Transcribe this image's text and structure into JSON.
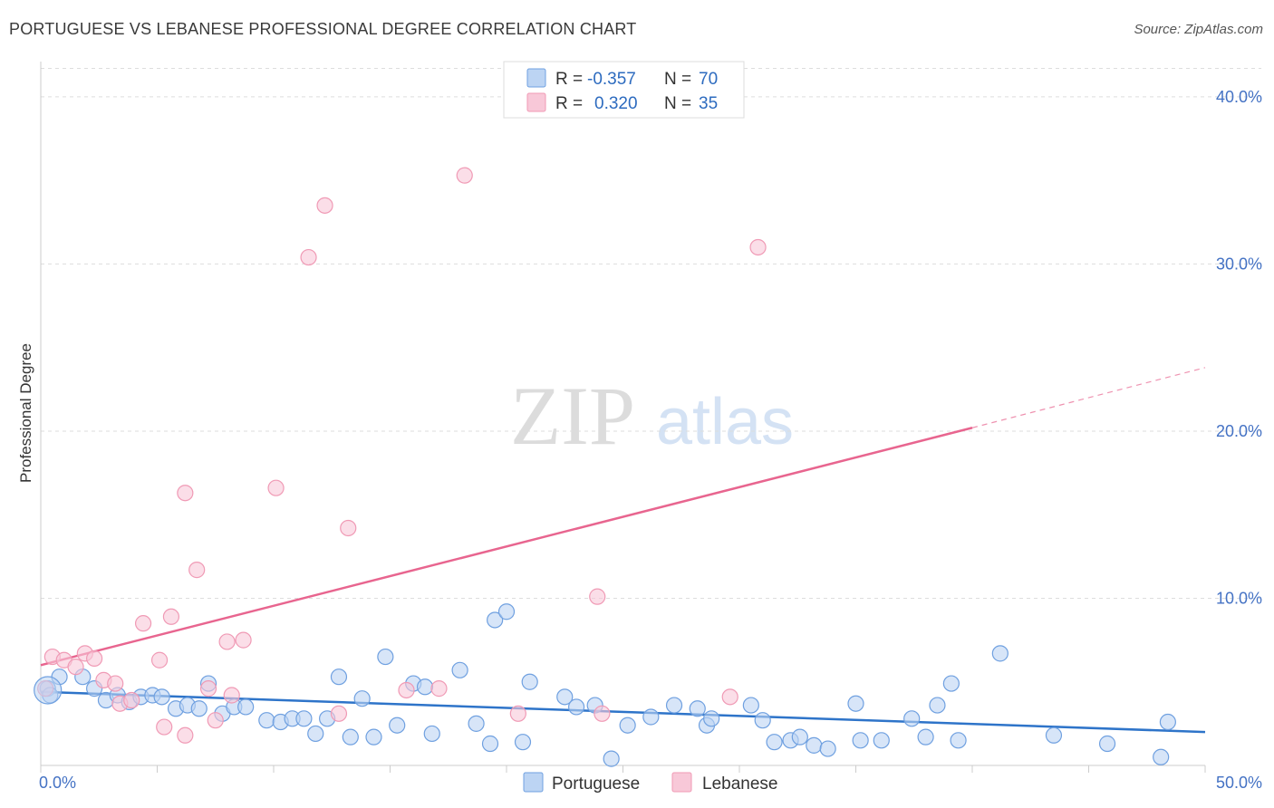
{
  "header": {
    "title": "PORTUGUESE VS LEBANESE PROFESSIONAL DEGREE CORRELATION CHART",
    "source": "Source: ZipAtlas.com"
  },
  "watermark": {
    "zip": "ZIP",
    "atlas": "atlas"
  },
  "chart_data": {
    "type": "scatter",
    "title": "PORTUGUESE VS LEBANESE PROFESSIONAL DEGREE CORRELATION CHART",
    "xlabel": "",
    "ylabel": "Professional Degree",
    "xlim": [
      0,
      50
    ],
    "ylim": [
      0,
      42
    ],
    "x_tick_labels": [
      {
        "value": 0,
        "label": "0.0%"
      },
      {
        "value": 50,
        "label": "50.0%"
      }
    ],
    "y_tick_labels": [
      {
        "value": 10,
        "label": "10.0%"
      },
      {
        "value": 20,
        "label": "20.0%"
      },
      {
        "value": 30,
        "label": "30.0%"
      },
      {
        "value": 40,
        "label": "40.0%"
      }
    ],
    "legend": {
      "placement": "top-center",
      "rows": [
        {
          "r_label": "R =",
          "r_value": "-0.357",
          "n_label": "N =",
          "n_value": "70"
        },
        {
          "r_label": "R =",
          "r_value": "0.320",
          "n_label": "N =",
          "n_value": "35"
        }
      ]
    },
    "series": [
      {
        "name": "Portuguese",
        "color": "#6fa0e0",
        "fill": "#bcd4f3",
        "trend": {
          "x0": 0,
          "y0": 4.4,
          "x1": 50,
          "y1": 2.0,
          "color": "#2e74c9"
        },
        "points": [
          [
            0.3,
            4.6
          ],
          [
            0.4,
            4.2
          ],
          [
            0.8,
            5.3
          ],
          [
            1.8,
            5.3
          ],
          [
            2.3,
            4.6
          ],
          [
            2.8,
            3.9
          ],
          [
            3.3,
            4.2
          ],
          [
            3.8,
            3.8
          ],
          [
            4.3,
            4.1
          ],
          [
            4.8,
            4.2
          ],
          [
            5.2,
            4.1
          ],
          [
            5.8,
            3.4
          ],
          [
            6.3,
            3.6
          ],
          [
            6.8,
            3.4
          ],
          [
            7.2,
            4.9
          ],
          [
            7.8,
            3.1
          ],
          [
            8.3,
            3.5
          ],
          [
            8.8,
            3.5
          ],
          [
            9.7,
            2.7
          ],
          [
            10.3,
            2.6
          ],
          [
            10.8,
            2.8
          ],
          [
            11.3,
            2.8
          ],
          [
            11.8,
            1.9
          ],
          [
            12.3,
            2.8
          ],
          [
            12.8,
            5.3
          ],
          [
            13.3,
            1.7
          ],
          [
            13.8,
            4.0
          ],
          [
            14.3,
            1.7
          ],
          [
            14.8,
            6.5
          ],
          [
            15.3,
            2.4
          ],
          [
            16.0,
            4.9
          ],
          [
            16.5,
            4.7
          ],
          [
            16.8,
            1.9
          ],
          [
            18.0,
            5.7
          ],
          [
            18.7,
            2.5
          ],
          [
            19.3,
            1.3
          ],
          [
            19.5,
            8.7
          ],
          [
            20.0,
            9.2
          ],
          [
            20.7,
            1.4
          ],
          [
            21.0,
            5.0
          ],
          [
            22.5,
            4.1
          ],
          [
            23.0,
            3.5
          ],
          [
            23.8,
            3.6
          ],
          [
            24.5,
            0.4
          ],
          [
            25.2,
            2.4
          ],
          [
            26.2,
            2.9
          ],
          [
            27.2,
            3.6
          ],
          [
            28.2,
            3.4
          ],
          [
            28.6,
            2.4
          ],
          [
            28.8,
            2.8
          ],
          [
            30.5,
            3.6
          ],
          [
            31.0,
            2.7
          ],
          [
            31.5,
            1.4
          ],
          [
            32.2,
            1.5
          ],
          [
            32.6,
            1.7
          ],
          [
            33.2,
            1.2
          ],
          [
            33.8,
            1.0
          ],
          [
            35.0,
            3.7
          ],
          [
            35.2,
            1.5
          ],
          [
            36.1,
            1.5
          ],
          [
            37.4,
            2.8
          ],
          [
            38.0,
            1.7
          ],
          [
            38.5,
            3.6
          ],
          [
            39.1,
            4.9
          ],
          [
            39.4,
            1.5
          ],
          [
            41.2,
            6.7
          ],
          [
            43.5,
            1.8
          ],
          [
            45.8,
            1.3
          ],
          [
            48.1,
            0.5
          ],
          [
            48.4,
            2.6
          ]
        ]
      },
      {
        "name": "Lebanese",
        "color": "#f09ab5",
        "fill": "#f8c8d8",
        "trend": {
          "x0": 0,
          "y0": 6.0,
          "x1": 40,
          "y1": 20.2,
          "dash_to_x": 50,
          "dash_to_y": 23.8,
          "color": "#e8658f"
        },
        "points": [
          [
            0.2,
            4.6
          ],
          [
            0.5,
            6.5
          ],
          [
            1.0,
            6.3
          ],
          [
            1.5,
            5.9
          ],
          [
            1.9,
            6.7
          ],
          [
            2.3,
            6.4
          ],
          [
            2.7,
            5.1
          ],
          [
            3.2,
            4.9
          ],
          [
            3.4,
            3.7
          ],
          [
            3.9,
            3.9
          ],
          [
            4.4,
            8.5
          ],
          [
            5.1,
            6.3
          ],
          [
            5.3,
            2.3
          ],
          [
            5.6,
            8.9
          ],
          [
            6.2,
            1.8
          ],
          [
            6.2,
            16.3
          ],
          [
            6.7,
            11.7
          ],
          [
            7.2,
            4.6
          ],
          [
            7.5,
            2.7
          ],
          [
            8.0,
            7.4
          ],
          [
            8.2,
            4.2
          ],
          [
            8.7,
            7.5
          ],
          [
            10.1,
            16.6
          ],
          [
            11.5,
            30.4
          ],
          [
            12.2,
            33.5
          ],
          [
            12.8,
            3.1
          ],
          [
            13.2,
            14.2
          ],
          [
            15.7,
            4.5
          ],
          [
            17.1,
            4.6
          ],
          [
            18.2,
            35.3
          ],
          [
            20.5,
            3.1
          ],
          [
            23.9,
            10.1
          ],
          [
            24.1,
            3.1
          ],
          [
            29.6,
            4.1
          ],
          [
            30.8,
            31.0
          ]
        ]
      }
    ]
  }
}
